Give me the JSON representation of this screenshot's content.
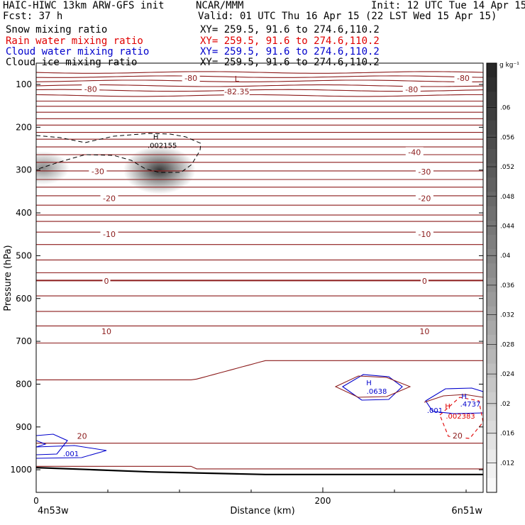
{
  "header": {
    "title_left": "HAIC-HIWC 13km ARW-GFS init",
    "title_center": "NCAR/MMM",
    "init": "Init: 12 UTC Tue 14 Apr 15",
    "fcst": "Fcst:   37 h",
    "valid": "Valid: 01 UTC Thu 16 Apr 15 (22 LST Wed 15 Apr 15)",
    "rows": [
      {
        "label": "Snow mixing ratio",
        "xy": "XY= 259.5, 91.6 to 274.6,110.2",
        "color": "#000000"
      },
      {
        "label": "Rain water mixing ratio",
        "xy": "XY= 259.5, 91.6 to 274.6,110.2",
        "color": "#e00000"
      },
      {
        "label": "Cloud water mixing ratio",
        "xy": "XY= 259.5, 91.6 to 274.6,110.2",
        "color": "#0000cc"
      },
      {
        "label": "Cloud ice mixing ratio",
        "xy": "XY= 259.5, 91.6 to 274.6,110.2",
        "color": "#000000"
      }
    ]
  },
  "chart_data": {
    "type": "contour",
    "xlabel": "Distance (km)",
    "ylabel": "Pressure (hPa)",
    "x_endpoint_left": "4n53w",
    "x_endpoint_right": "6n51w",
    "xlim": [
      0,
      312
    ],
    "ylim": [
      1050,
      55
    ],
    "x_ticks": [
      0,
      200
    ],
    "x_minor_ticks": [
      50,
      100,
      150,
      250,
      300
    ],
    "y_ticks": [
      100,
      200,
      300,
      400,
      500,
      600,
      700,
      800,
      900,
      1000
    ],
    "colorbar": {
      "unit": "g kg⁻¹",
      "ticks": [
        ".06",
        ".056",
        ".052",
        ".048",
        ".044",
        ".04",
        ".036",
        ".032",
        ".028",
        ".024",
        ".02",
        ".016",
        ".012"
      ],
      "tick_values": [
        0.06,
        0.056,
        0.052,
        0.048,
        0.044,
        0.04,
        0.036,
        0.032,
        0.028,
        0.024,
        0.02,
        0.016,
        0.012
      ],
      "range": [
        0.008,
        0.066
      ]
    },
    "temperature_contours": {
      "color": "#8b1a1a",
      "levels_hpa": [
        72,
        82,
        92,
        103,
        114,
        126,
        139,
        151,
        165,
        180,
        195,
        212,
        228,
        246,
        264,
        282,
        302,
        322,
        340,
        360,
        382,
        405,
        420,
        445,
        474,
        510,
        540,
        558,
        594,
        630,
        664,
        704,
        745,
        938,
        992
      ],
      "bold_levels_hpa": [
        558
      ],
      "labels": [
        {
          "text": "-80",
          "x": 108,
          "p": 85
        },
        {
          "text": "-80",
          "x": 298,
          "p": 85
        },
        {
          "text": "-80",
          "x": 38,
          "p": 111
        },
        {
          "text": "-80",
          "x": 262,
          "p": 112
        },
        {
          "text": "-40",
          "x": 264,
          "p": 258
        },
        {
          "text": "-30",
          "x": 43,
          "p": 303
        },
        {
          "text": "-30",
          "x": 271,
          "p": 304
        },
        {
          "text": "-20",
          "x": 51,
          "p": 366
        },
        {
          "text": "-20",
          "x": 271,
          "p": 366
        },
        {
          "text": "-10",
          "x": 51,
          "p": 450
        },
        {
          "text": "-10",
          "x": 271,
          "p": 450
        },
        {
          "text": "0",
          "x": 49,
          "p": 559
        },
        {
          "text": "0",
          "x": 271,
          "p": 559
        },
        {
          "text": "10",
          "x": 49,
          "p": 677
        },
        {
          "text": "10",
          "x": 271,
          "p": 677
        },
        {
          "text": "20",
          "x": 32,
          "p": 921
        },
        {
          "text": "20",
          "x": 294,
          "p": 920
        }
      ]
    },
    "tropopause_low": {
      "text": "L",
      "value": "-82.35",
      "x": 140,
      "p": 100
    },
    "surface_pressure": [
      {
        "x": 0,
        "p": 995
      },
      {
        "x": 40,
        "p": 1000
      },
      {
        "x": 80,
        "p": 1005
      },
      {
        "x": 120,
        "p": 1008
      },
      {
        "x": 160,
        "p": 1011
      },
      {
        "x": 240,
        "p": 1011
      },
      {
        "x": 312,
        "p": 1011
      }
    ],
    "snow_shading": [
      {
        "x": 86,
        "p": 300,
        "max": 0.062,
        "rx_km": 18,
        "ry_hpa": 40
      },
      {
        "x": 5,
        "p": 295,
        "max": 0.04,
        "rx_km": 13,
        "ry_hpa": 28
      }
    ],
    "cloud_ice_contour": {
      "max_label": ".002155",
      "max_x": 82,
      "max_p": 235
    },
    "cloud_water": {
      "labels": [
        ".0638",
        ".001",
        ".4737"
      ],
      "highs": [
        "H",
        "H"
      ]
    },
    "rain_water": {
      "labels": [
        ".002383"
      ],
      "highs": [
        "H"
      ]
    }
  }
}
